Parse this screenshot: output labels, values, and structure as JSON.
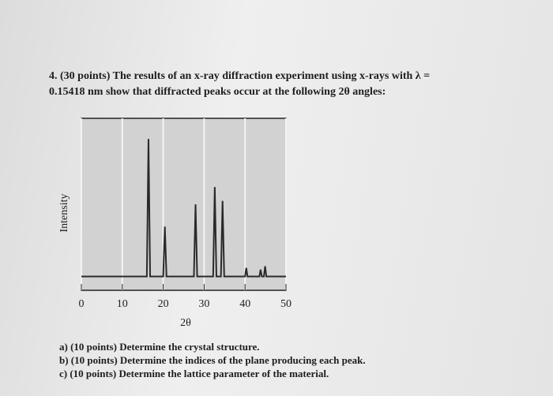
{
  "question": {
    "lines": [
      "4. (30 points) The results of an x-ray diffraction experiment using x-rays with λ =",
      "0.15418 nm show that diffracted peaks occur at the following 2θ angles:"
    ]
  },
  "chart_data": {
    "type": "line",
    "xlabel": "2θ",
    "ylabel": "Intensity",
    "color": "#2a2a2a",
    "grid": true,
    "x": [
      0,
      16.0,
      16.4,
      16.8,
      20.0,
      20.4,
      20.8,
      27.5,
      27.9,
      28.3,
      32.2,
      32.6,
      33.0,
      34.1,
      34.5,
      34.9,
      40.0,
      40.3,
      40.6,
      43.5,
      43.8,
      44.1,
      44.6,
      44.9,
      45.2,
      50
    ],
    "values": [
      8,
      8,
      88,
      8,
      8,
      37,
      8,
      8,
      50,
      8,
      8,
      60,
      8,
      8,
      52,
      8,
      8,
      13,
      8,
      8,
      12,
      8,
      8,
      14,
      8,
      8
    ],
    "xlim": [
      0,
      50
    ],
    "xticks": [
      0,
      10,
      20,
      30,
      40,
      50
    ],
    "ylim": [
      0,
      100
    ]
  },
  "parts": [
    "a) (10 points) Determine the crystal structure.",
    "b) (10 points) Determine the indices of the plane producing each peak.",
    "c) (10 points) Determine the lattice parameter of the material."
  ]
}
